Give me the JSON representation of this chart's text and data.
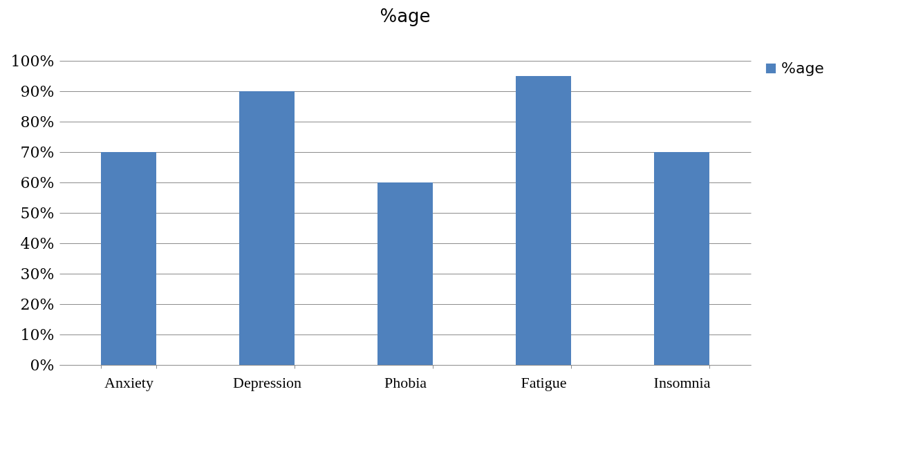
{
  "chart_data": {
    "type": "bar",
    "title": "%age",
    "categories": [
      "Anxiety",
      "Depression",
      "Phobia",
      "Fatigue",
      "Insomnia"
    ],
    "series": [
      {
        "name": "%age",
        "color": "#4f81bd",
        "values": [
          70,
          90,
          60,
          95,
          70
        ]
      }
    ],
    "ylim": [
      0,
      100
    ],
    "yticks": [
      {
        "value": 0,
        "label": "0%"
      },
      {
        "value": 10,
        "label": "10%"
      },
      {
        "value": 20,
        "label": "20%"
      },
      {
        "value": 30,
        "label": "30%"
      },
      {
        "value": 40,
        "label": "40%"
      },
      {
        "value": 50,
        "label": "50%"
      },
      {
        "value": 60,
        "label": "60%"
      },
      {
        "value": 70,
        "label": "70%"
      },
      {
        "value": 80,
        "label": "80%"
      },
      {
        "value": 90,
        "label": "90%"
      },
      {
        "value": 100,
        "label": "100%"
      }
    ],
    "grid": "y",
    "legend": "right"
  }
}
